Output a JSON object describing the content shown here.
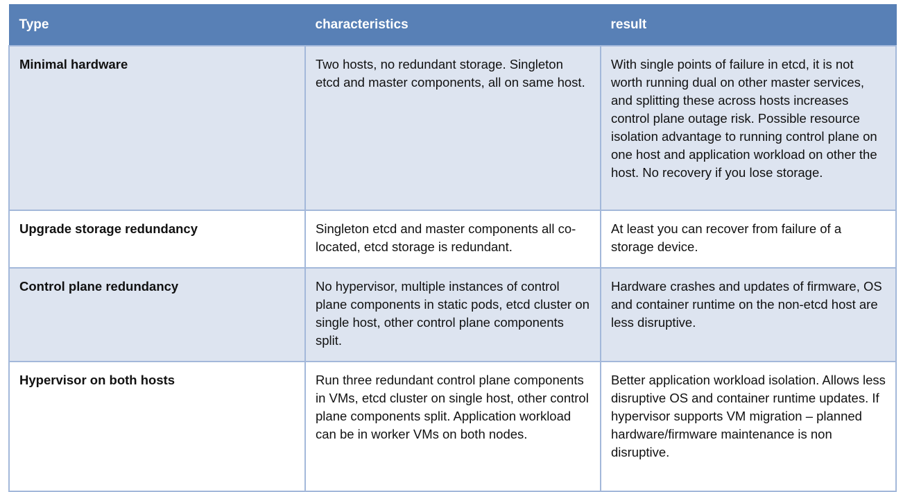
{
  "table": {
    "headers": [
      "Type",
      "characteristics",
      "result"
    ],
    "rows": [
      {
        "type": "Minimal hardware",
        "characteristics": "Two hosts, no redundant storage. Singleton etcd and master components, all on same host.",
        "result": "With single points of failure in etcd, it is not worth running dual on other master services, and splitting these across hosts increases control plane outage risk. Possible resource isolation advantage to running control plane on one host and application workload on other the host. No recovery if you lose storage."
      },
      {
        "type": "Upgrade storage redundancy",
        "characteristics": "Singleton etcd and master components all co-located, etcd storage is redundant.",
        "result": "At least you can recover from failure of a storage device."
      },
      {
        "type": "Control plane redundancy",
        "characteristics": "No hypervisor, multiple instances of control plane components in static pods, etcd cluster on single host, other control plane components split.",
        "result": "Hardware crashes and updates of firmware, OS and container runtime on the non-etcd host are less disruptive."
      },
      {
        "type": "Hypervisor on both hosts",
        "characteristics": "Run three redundant control plane components in VMs, etcd cluster on single host, other control plane components split. Application workload can be in worker VMs on both nodes.",
        "result": "Better application workload isolation. Allows less disruptive OS and container runtime updates. If hypervisor supports VM migration – planned hardware/firmware maintenance is non disruptive."
      }
    ]
  },
  "colors": {
    "header_bg": "#5880b6",
    "row_shade": "#dde4f0",
    "border": "#a3b8da"
  }
}
